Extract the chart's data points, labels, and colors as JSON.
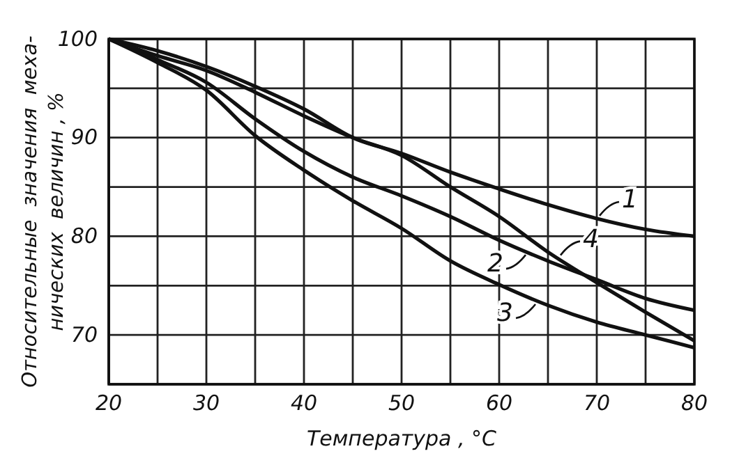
{
  "chart_data": {
    "type": "line",
    "xlabel": "Температура , °C",
    "ylabel": "Относительные  значения  меха-\nнических  величин , %",
    "x": [
      20,
      25,
      30,
      35,
      40,
      45,
      50,
      55,
      60,
      65,
      70,
      75,
      80
    ],
    "series": [
      {
        "color": "#111111",
        "values": [
          100,
          98.8,
          97.2,
          95.2,
          92.9,
          90.0,
          88.4,
          86.5,
          84.8,
          83.2,
          81.8,
          80.7,
          80.0
        ]
      },
      {
        "color": "#111111",
        "values": [
          100,
          97.9,
          95.6,
          91.9,
          88.6,
          86.0,
          84.1,
          82.0,
          79.6,
          77.5,
          75.6,
          73.7,
          72.5
        ]
      },
      {
        "color": "#111111",
        "values": [
          100,
          97.6,
          94.8,
          90.2,
          86.7,
          83.6,
          80.8,
          77.5,
          75.1,
          73.0,
          71.3,
          70.0,
          68.7
        ]
      },
      {
        "color": "#111111",
        "values": [
          100,
          98.3,
          96.8,
          94.6,
          92.2,
          90.0,
          88.2,
          85.0,
          82.0,
          78.4,
          75.3,
          72.3,
          69.4
        ]
      }
    ],
    "annotations": [
      {
        "text": "1",
        "x": 70,
        "y": 81.8
      },
      {
        "text": "2",
        "x": 63,
        "y": 78.4
      },
      {
        "text": "3",
        "x": 64,
        "y": 73.4
      },
      {
        "text": "4",
        "x": 66,
        "y": 77.8
      }
    ],
    "xlim": [
      20,
      80
    ],
    "xticks": [
      20,
      {
        "value": 25,
        "label": null
      },
      30,
      {
        "value": 35,
        "label": null
      },
      40,
      {
        "value": 45,
        "label": null
      },
      50,
      {
        "value": 55,
        "label": null
      },
      60,
      {
        "value": 65,
        "label": null
      },
      70,
      {
        "value": 75,
        "label": null
      },
      80
    ],
    "ylim": [
      65,
      100
    ],
    "yticks": [
      70,
      {
        "value": 75,
        "label": null
      },
      80,
      {
        "value": 85,
        "label": null
      },
      90,
      {
        "value": 95,
        "label": null
      },
      100
    ],
    "grid": true,
    "marker": "none",
    "line_style": "solid"
  }
}
